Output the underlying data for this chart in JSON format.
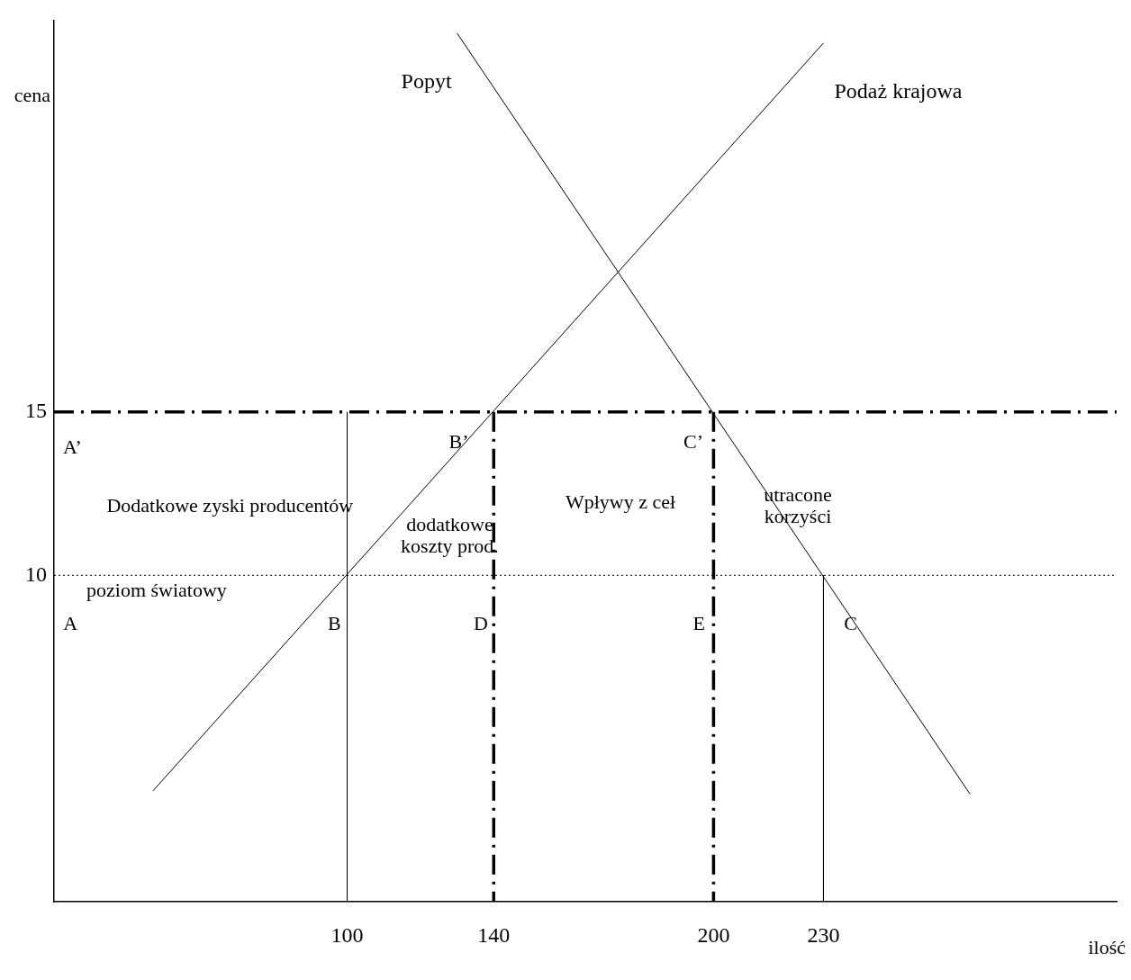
{
  "chart_data": {
    "type": "line",
    "xlabel": "ilość",
    "ylabel": "cena",
    "xlim": [
      20,
      310
    ],
    "xticks": [
      100,
      140,
      200,
      230
    ],
    "ylim": [
      0,
      27
    ],
    "yticks": [
      10,
      15
    ],
    "grid": false,
    "legend": false,
    "marker": "none",
    "series": [
      {
        "name": "Popyt",
        "color": "#000000",
        "x": [
          130,
          270
        ],
        "values": [
          26.6,
          3.3
        ],
        "line_style": "solid"
      },
      {
        "name": "Podaż krajowa",
        "color": "#000000",
        "x": [
          47,
          230
        ],
        "values": [
          3.4,
          26.3
        ],
        "line_style": "solid"
      },
      {
        "color": "#000000",
        "x": [
          100,
          100
        ],
        "values": [
          15,
          0
        ],
        "line_style": "solid"
      },
      {
        "color": "#000000",
        "x": [
          140,
          140
        ],
        "values": [
          15,
          0
        ],
        "line_style": "dashed"
      },
      {
        "color": "#000000",
        "x": [
          200,
          200
        ],
        "values": [
          15,
          0
        ],
        "line_style": "dashed"
      },
      {
        "color": "#000000",
        "x": [
          230,
          230
        ],
        "values": [
          10,
          0
        ],
        "line_style": "solid"
      }
    ],
    "ref_lines": [
      {
        "axis": "y",
        "value": 15,
        "line_style": "dashed",
        "color": "#000000"
      },
      {
        "axis": "y",
        "value": 10,
        "line_style": "dotted",
        "color": "#000000"
      }
    ],
    "annotations": [
      "A’",
      "B’",
      "C’",
      "Dodatkowe zyski producentów",
      "dodatkowe\nkoszty prod.",
      "Wpływy z ceł",
      "utracone\nkorzyści",
      "poziom światowy",
      "A",
      "B",
      "D",
      "E",
      "C"
    ]
  }
}
